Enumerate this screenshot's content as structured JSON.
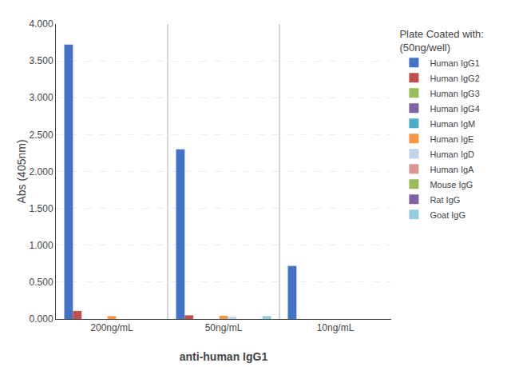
{
  "chart_data": {
    "type": "bar",
    "categories": [
      "200ng/mL",
      "50ng/mL",
      "10ng/mL"
    ],
    "series": [
      {
        "name": "Human IgG1",
        "color": "#4472C4",
        "values": [
          3.72,
          2.3,
          0.72
        ]
      },
      {
        "name": "Human IgG2",
        "color": "#C0504D",
        "values": [
          0.11,
          0.05,
          0.0
        ]
      },
      {
        "name": "Human IgG3",
        "color": "#9BBB59",
        "values": [
          0.0,
          0.0,
          0.0
        ]
      },
      {
        "name": "Human IgG4",
        "color": "#8064A2",
        "values": [
          0.0,
          0.0,
          0.0
        ]
      },
      {
        "name": "Human IgM",
        "color": "#4BACC6",
        "values": [
          0.0,
          0.0,
          0.0
        ]
      },
      {
        "name": "Human IgE",
        "color": "#F79646",
        "values": [
          0.04,
          0.045,
          0.0
        ]
      },
      {
        "name": "Human IgD",
        "color": "#C0D4E9",
        "values": [
          0.0,
          0.03,
          0.0
        ]
      },
      {
        "name": "Human IgA",
        "color": "#D99694",
        "values": [
          0.0,
          0.0,
          0.0
        ]
      },
      {
        "name": "Mouse IgG",
        "color": "#9BBB59",
        "values": [
          0.0,
          0.0,
          0.0
        ]
      },
      {
        "name": "Rat IgG",
        "color": "#8064A2",
        "values": [
          0.0,
          0.0,
          0.0
        ]
      },
      {
        "name": "Goat IgG",
        "color": "#92CDDC",
        "values": [
          0.0,
          0.04,
          0.0
        ]
      }
    ],
    "xlabel": "anti-human IgG1",
    "ylabel": "Abs (405nm)",
    "legend_title": "Plate Coated with:\n(50ng/well)",
    "ylim": [
      0.0,
      4.0
    ],
    "yticks": [
      {
        "value": 0.0,
        "label": "0.000"
      },
      {
        "value": 0.5,
        "label": "0.500"
      },
      {
        "value": 1.0,
        "label": "1.000"
      },
      {
        "value": 1.5,
        "label": "1.500"
      },
      {
        "value": 2.0,
        "label": "2.000"
      },
      {
        "value": 2.5,
        "label": "2.500"
      },
      {
        "value": 3.0,
        "label": "3.000"
      },
      {
        "value": 3.5,
        "label": "3.500"
      },
      {
        "value": 4.0,
        "label": "4.000"
      }
    ],
    "grid": true,
    "legend": "right"
  }
}
